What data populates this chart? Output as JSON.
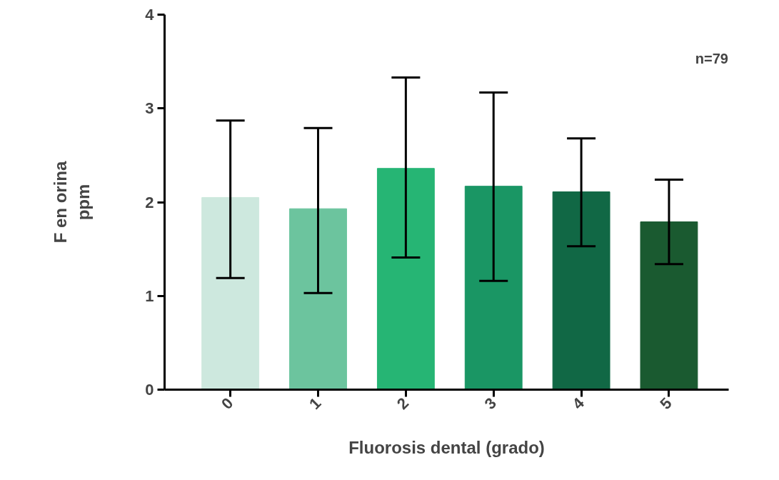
{
  "chart_data": {
    "type": "bar",
    "xlabel": "Fluorosis dental (grado)",
    "ylabel": "F en orina\nppm",
    "categories": [
      "0",
      "1",
      "2",
      "3",
      "4",
      "5"
    ],
    "values": [
      2.05,
      1.93,
      2.36,
      2.17,
      2.11,
      1.79
    ],
    "errors": [
      [
        1.19,
        2.87
      ],
      [
        1.03,
        2.79
      ],
      [
        1.41,
        3.33
      ],
      [
        1.16,
        3.17
      ],
      [
        1.53,
        2.68
      ],
      [
        1.34,
        2.24
      ]
    ],
    "colors": [
      "#cde8de",
      "#6cc49e",
      "#26b574",
      "#1a9664",
      "#116845",
      "#1a5a30"
    ],
    "ylim": [
      0,
      4
    ],
    "yticks": [
      0,
      1,
      2,
      3,
      4
    ],
    "grid": false,
    "annotations": [
      "n=79"
    ]
  }
}
